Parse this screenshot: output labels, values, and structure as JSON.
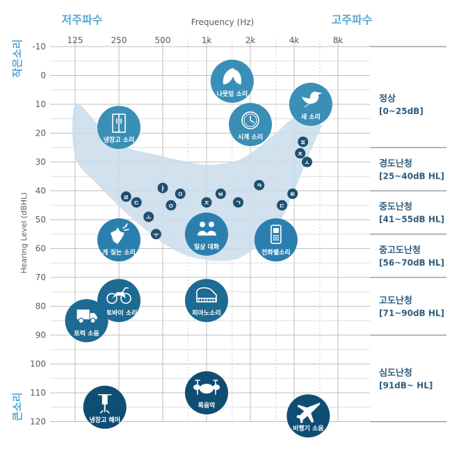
{
  "chart_data": {
    "type": "scatter",
    "headers": {
      "low_freq": "저주파수",
      "high_freq": "고주파수",
      "soft_sound": "작은소리",
      "loud_sound": "큰소리"
    },
    "xlabel": "Frequency (Hz)",
    "ylabel": "Hearing Level (dBHL)",
    "x_ticks": [
      "125",
      "250",
      "500",
      "1k",
      "2k",
      "4k",
      "8k"
    ],
    "y_ticks": [
      -10,
      0,
      10,
      20,
      30,
      40,
      50,
      60,
      70,
      80,
      90,
      100,
      110,
      120
    ],
    "ylim": [
      -10,
      120
    ],
    "grid": true,
    "categories": [
      {
        "name": "정상",
        "range": "[0~25dB]",
        "from": -10,
        "to": 25
      },
      {
        "name": "경도난청",
        "range": "[25~40dB HL]",
        "from": 25,
        "to": 40
      },
      {
        "name": "중도난청",
        "range": "[41~55dB HL]",
        "from": 40,
        "to": 55
      },
      {
        "name": "중고도난청",
        "range": "[56~70dB HL]",
        "from": 55,
        "to": 70
      },
      {
        "name": "고도난청",
        "range": "[71~90dB HL]",
        "from": 70,
        "to": 90
      },
      {
        "name": "심도난청",
        "range": "[91dB~  HL]",
        "from": 90,
        "to": 120
      }
    ],
    "speech_banana": {
      "upper": [
        [
          125,
          10
        ],
        [
          180,
          17
        ],
        [
          250,
          24
        ],
        [
          500,
          28
        ],
        [
          750,
          30
        ],
        [
          1000,
          31
        ],
        [
          1500,
          30
        ],
        [
          2000,
          27
        ],
        [
          3000,
          20
        ],
        [
          4000,
          15
        ],
        [
          6000,
          17
        ]
      ],
      "lower": [
        [
          6000,
          19
        ],
        [
          5000,
          28
        ],
        [
          4000,
          40
        ],
        [
          3000,
          53
        ],
        [
          2000,
          61
        ],
        [
          1500,
          64
        ],
        [
          1000,
          64
        ],
        [
          700,
          62
        ],
        [
          500,
          58
        ],
        [
          300,
          49
        ],
        [
          180,
          38
        ],
        [
          125,
          28
        ]
      ]
    },
    "phonemes": [
      {
        "label": "ㄹ",
        "freq": 280,
        "db": 42
      },
      {
        "label": "ㄷ",
        "freq": 330,
        "db": 44
      },
      {
        "label": "ㅗ",
        "freq": 400,
        "db": 49
      },
      {
        "label": "ㅜ",
        "freq": 450,
        "db": 55
      },
      {
        "label": "ㅏ",
        "freq": 500,
        "db": 39
      },
      {
        "label": "ㅇ",
        "freq": 570,
        "db": 45
      },
      {
        "label": "ㅇ",
        "freq": 660,
        "db": 41
      },
      {
        "label": "ㅈ",
        "freq": 1000,
        "db": 44
      },
      {
        "label": "ㅂ",
        "freq": 1250,
        "db": 41
      },
      {
        "label": "ㄱ",
        "freq": 1650,
        "db": 44
      },
      {
        "label": "ㅋ",
        "freq": 2300,
        "db": 38
      },
      {
        "label": "ㄷ",
        "freq": 3300,
        "db": 45
      },
      {
        "label": "ㅌ",
        "freq": 3900,
        "db": 41
      },
      {
        "label": "ㅊ",
        "freq": 4400,
        "db": 27
      },
      {
        "label": "ㅅ",
        "freq": 4900,
        "db": 30
      },
      {
        "label": "ㅍ",
        "freq": 4600,
        "db": 23
      }
    ],
    "sounds": [
      {
        "label": "나뭇잎 소리",
        "icon": "leaf-icon",
        "freq": 1500,
        "db": 2,
        "color": "#3a8fb7"
      },
      {
        "label": "새 소리",
        "icon": "bird-icon",
        "freq": 5200,
        "db": 10,
        "color": "#3a8fb7"
      },
      {
        "label": "냉장고 소리",
        "icon": "refrigerator-icon",
        "freq": 250,
        "db": 18,
        "color": "#3a8fb7"
      },
      {
        "label": "시계 소리",
        "icon": "clock-icon",
        "freq": 2000,
        "db": 17,
        "color": "#3a8fb7"
      },
      {
        "label": "개 짖는 소리",
        "icon": "dog-icon",
        "freq": 250,
        "db": 57,
        "color": "#2b7fae"
      },
      {
        "label": "일상 대화",
        "icon": "conversation-icon",
        "freq": 1000,
        "db": 55,
        "color": "#2b7fae"
      },
      {
        "label": "전화벨소리",
        "icon": "phone-icon",
        "freq": 3000,
        "db": 57,
        "color": "#2b7fae"
      },
      {
        "label": "오토바이 소리",
        "icon": "motorcycle-icon",
        "freq": 250,
        "db": 78,
        "color": "#1d6a92"
      },
      {
        "label": "피아노소리",
        "icon": "piano-icon",
        "freq": 1000,
        "db": 78,
        "color": "#1d6a92"
      },
      {
        "label": "트럭 소음",
        "icon": "truck-icon",
        "freq": 150,
        "db": 85,
        "color": "#1d6a92"
      },
      {
        "label": "록음악",
        "icon": "drums-icon",
        "freq": 1000,
        "db": 110,
        "color": "#0f4e72"
      },
      {
        "label": "냉장고 해머",
        "icon": "jackhammer-icon",
        "freq": 200,
        "db": 115,
        "color": "#0f4e72"
      },
      {
        "label": "비행기 소음",
        "icon": "airplane-icon",
        "freq": 5000,
        "db": 118,
        "color": "#0f4e72"
      }
    ]
  }
}
